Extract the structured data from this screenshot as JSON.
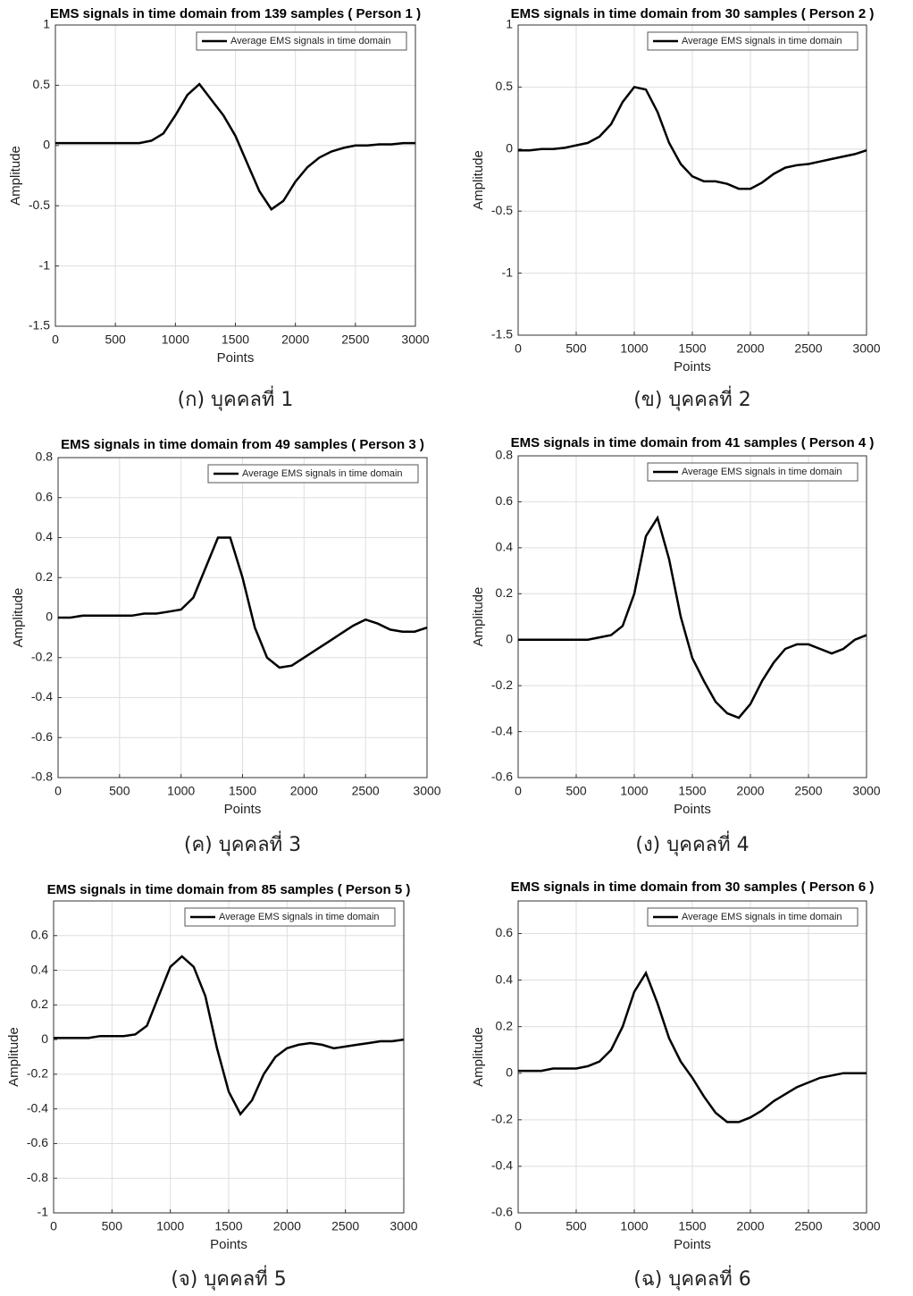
{
  "chart_data": [
    {
      "type": "line",
      "title": "EMS signals in time domain from 139 samples ( Person 1 )",
      "caption": "(ก) บุคคลที่ 1",
      "xlabel": "Points",
      "ylabel": "Amplitude",
      "x": [
        0,
        100,
        200,
        300,
        400,
        500,
        600,
        700,
        800,
        900,
        1000,
        1100,
        1200,
        1300,
        1400,
        1500,
        1600,
        1700,
        1800,
        1900,
        2000,
        2100,
        2200,
        2300,
        2400,
        2500,
        2600,
        2700,
        2800,
        2900,
        3000
      ],
      "xlim": [
        0,
        3000
      ],
      "xticks": [
        0,
        500,
        1000,
        1500,
        2000,
        2500,
        3000
      ],
      "ylim": [
        -1.5,
        1
      ],
      "yticks": [
        -1.5,
        -1,
        -0.5,
        0,
        0.5,
        1
      ],
      "grid": true,
      "series": [
        {
          "name": "Average EMS signals in time domain",
          "color": "#000000",
          "values": [
            0.02,
            0.02,
            0.02,
            0.02,
            0.02,
            0.02,
            0.02,
            0.02,
            0.04,
            0.1,
            0.25,
            0.42,
            0.51,
            0.38,
            0.25,
            0.08,
            -0.15,
            -0.38,
            -0.53,
            -0.46,
            -0.3,
            -0.18,
            -0.1,
            -0.05,
            -0.02,
            0,
            0,
            0.01,
            0.01,
            0.02,
            0.02
          ]
        }
      ]
    },
    {
      "type": "line",
      "title": "EMS signals in time domain from 30 samples ( Person 2 )",
      "caption": "(ข) บุคคลที่ 2",
      "xlabel": "Points",
      "ylabel": "Amplitude",
      "x": [
        0,
        100,
        200,
        300,
        400,
        500,
        600,
        700,
        800,
        900,
        1000,
        1100,
        1200,
        1300,
        1400,
        1500,
        1600,
        1700,
        1800,
        1900,
        2000,
        2100,
        2200,
        2300,
        2400,
        2500,
        2600,
        2700,
        2800,
        2900,
        3000
      ],
      "xlim": [
        0,
        3000
      ],
      "xticks": [
        0,
        500,
        1000,
        1500,
        2000,
        2500,
        3000
      ],
      "ylim": [
        -1.5,
        1
      ],
      "yticks": [
        -1.5,
        -1,
        -0.5,
        0,
        0.5,
        1
      ],
      "grid": true,
      "series": [
        {
          "name": "Average EMS signals in time domain",
          "color": "#000000",
          "values": [
            -0.01,
            -0.01,
            0,
            0,
            0.01,
            0.03,
            0.05,
            0.1,
            0.2,
            0.38,
            0.5,
            0.48,
            0.3,
            0.05,
            -0.12,
            -0.22,
            -0.26,
            -0.26,
            -0.28,
            -0.32,
            -0.32,
            -0.27,
            -0.2,
            -0.15,
            -0.13,
            -0.12,
            -0.1,
            -0.08,
            -0.06,
            -0.04,
            -0.01
          ]
        }
      ]
    },
    {
      "type": "line",
      "title": "EMS signals in time domain from 49 samples ( Person 3 )",
      "caption": "(ค) บุคคลที่ 3",
      "xlabel": "Points",
      "ylabel": "Amplitude",
      "x": [
        0,
        100,
        200,
        300,
        400,
        500,
        600,
        700,
        800,
        900,
        1000,
        1100,
        1200,
        1300,
        1400,
        1500,
        1600,
        1700,
        1800,
        1900,
        2000,
        2100,
        2200,
        2300,
        2400,
        2500,
        2600,
        2700,
        2800,
        2900,
        3000
      ],
      "xlim": [
        0,
        3000
      ],
      "xticks": [
        0,
        500,
        1000,
        1500,
        2000,
        2500,
        3000
      ],
      "ylim": [
        -0.8,
        0.8
      ],
      "yticks": [
        -0.8,
        -0.6,
        -0.4,
        -0.2,
        0,
        0.2,
        0.4,
        0.6,
        0.8
      ],
      "grid": true,
      "series": [
        {
          "name": "Average EMS signals in time domain",
          "color": "#000000",
          "values": [
            0,
            0,
            0.01,
            0.01,
            0.01,
            0.01,
            0.01,
            0.02,
            0.02,
            0.03,
            0.04,
            0.1,
            0.25,
            0.4,
            0.4,
            0.2,
            -0.05,
            -0.2,
            -0.25,
            -0.24,
            -0.2,
            -0.16,
            -0.12,
            -0.08,
            -0.04,
            -0.01,
            -0.03,
            -0.06,
            -0.07,
            -0.07,
            -0.05
          ]
        }
      ]
    },
    {
      "type": "line",
      "title": "EMS signals in time domain from 41 samples ( Person 4 )",
      "caption": "(ง) บุคคลที่ 4",
      "xlabel": "Points",
      "ylabel": "Amplitude",
      "x": [
        0,
        100,
        200,
        300,
        400,
        500,
        600,
        700,
        800,
        900,
        1000,
        1100,
        1200,
        1300,
        1400,
        1500,
        1600,
        1700,
        1800,
        1900,
        2000,
        2100,
        2200,
        2300,
        2400,
        2500,
        2600,
        2700,
        2800,
        2900,
        3000
      ],
      "xlim": [
        0,
        3000
      ],
      "xticks": [
        0,
        500,
        1000,
        1500,
        2000,
        2500,
        3000
      ],
      "ylim": [
        -0.6,
        0.8
      ],
      "yticks": [
        -0.6,
        -0.4,
        -0.2,
        0,
        0.2,
        0.4,
        0.6,
        0.8
      ],
      "grid": true,
      "series": [
        {
          "name": "Average EMS signals in time domain",
          "color": "#000000",
          "values": [
            0,
            0,
            0,
            0,
            0,
            0,
            0,
            0.01,
            0.02,
            0.06,
            0.2,
            0.45,
            0.53,
            0.35,
            0.1,
            -0.08,
            -0.18,
            -0.27,
            -0.32,
            -0.34,
            -0.28,
            -0.18,
            -0.1,
            -0.04,
            -0.02,
            -0.02,
            -0.04,
            -0.06,
            -0.04,
            0,
            0.02
          ]
        }
      ]
    },
    {
      "type": "line",
      "title": "EMS signals in time domain from 85 samples ( Person 5 )",
      "caption": "(จ) บุคคลที่ 5",
      "xlabel": "Points",
      "ylabel": "Amplitude",
      "x": [
        0,
        100,
        200,
        300,
        400,
        500,
        600,
        700,
        800,
        900,
        1000,
        1100,
        1200,
        1300,
        1400,
        1500,
        1600,
        1700,
        1800,
        1900,
        2000,
        2100,
        2200,
        2300,
        2400,
        2500,
        2600,
        2700,
        2800,
        2900,
        3000
      ],
      "xlim": [
        0,
        3000
      ],
      "xticks": [
        0,
        500,
        1000,
        1500,
        2000,
        2500,
        3000
      ],
      "ylim": [
        -1,
        0.8
      ],
      "yticks": [
        -1,
        -0.8,
        -0.6,
        -0.4,
        -0.2,
        0,
        0.2,
        0.4,
        0.6
      ],
      "grid": true,
      "series": [
        {
          "name": "Average EMS signals in time domain",
          "color": "#000000",
          "values": [
            0.01,
            0.01,
            0.01,
            0.01,
            0.02,
            0.02,
            0.02,
            0.03,
            0.08,
            0.25,
            0.42,
            0.48,
            0.42,
            0.25,
            -0.05,
            -0.3,
            -0.43,
            -0.35,
            -0.2,
            -0.1,
            -0.05,
            -0.03,
            -0.02,
            -0.03,
            -0.05,
            -0.04,
            -0.03,
            -0.02,
            -0.01,
            -0.01,
            0
          ]
        }
      ]
    },
    {
      "type": "line",
      "title": "EMS signals in time domain from 30 samples ( Person 6 )",
      "caption": "(ฉ) บุคคลที่ 6",
      "xlabel": "Points",
      "ylabel": "Amplitude",
      "x": [
        0,
        100,
        200,
        300,
        400,
        500,
        600,
        700,
        800,
        900,
        1000,
        1100,
        1200,
        1300,
        1400,
        1500,
        1600,
        1700,
        1800,
        1900,
        2000,
        2100,
        2200,
        2300,
        2400,
        2500,
        2600,
        2700,
        2800,
        2900,
        3000
      ],
      "xlim": [
        0,
        3000
      ],
      "xticks": [
        0,
        500,
        1000,
        1500,
        2000,
        2500,
        3000
      ],
      "ylim": [
        -0.6,
        0.74
      ],
      "yticks": [
        -0.6,
        -0.4,
        -0.2,
        0,
        0.2,
        0.4,
        0.6
      ],
      "grid": true,
      "series": [
        {
          "name": "Average EMS signals in time domain",
          "color": "#000000",
          "values": [
            0.01,
            0.01,
            0.01,
            0.02,
            0.02,
            0.02,
            0.03,
            0.05,
            0.1,
            0.2,
            0.35,
            0.43,
            0.3,
            0.15,
            0.05,
            -0.02,
            -0.1,
            -0.17,
            -0.21,
            -0.21,
            -0.19,
            -0.16,
            -0.12,
            -0.09,
            -0.06,
            -0.04,
            -0.02,
            -0.01,
            0,
            0,
            0
          ]
        }
      ]
    }
  ]
}
